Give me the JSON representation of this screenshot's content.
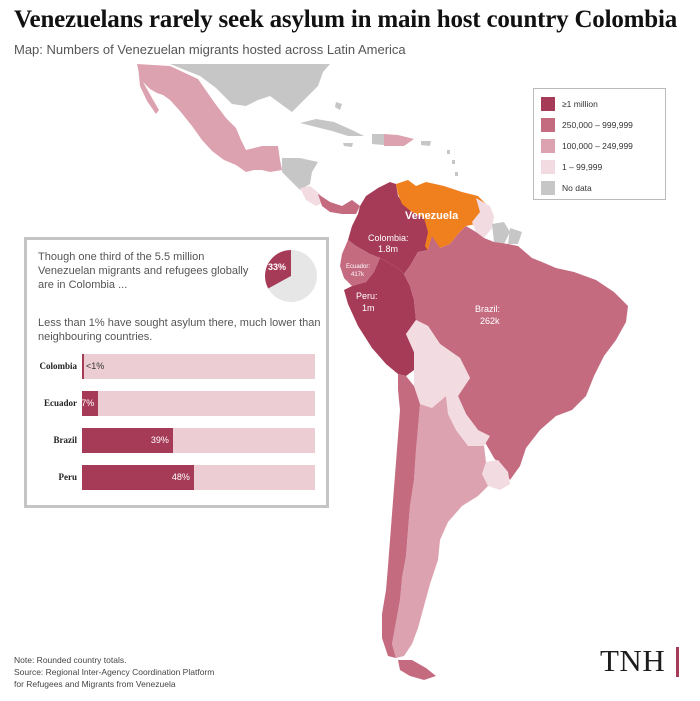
{
  "title": "Venezuelans rarely seek asylum in main host country Colombia",
  "subtitle": "Map: Numbers of Venezuelan migrants hosted across Latin America",
  "colors": {
    "tier1": "#a63b57",
    "tier2": "#c46b80",
    "tier3": "#dda2af",
    "tier4": "#f2dce1",
    "nodata": "#c6c6c6",
    "venezuela": "#f07f1e",
    "bar_track": "#ebcdd3"
  },
  "legend": {
    "items": [
      {
        "label": "≥1 million",
        "color": "#a63b57"
      },
      {
        "label": "250,000 – 999,999",
        "color": "#c46b80"
      },
      {
        "label": "100,000 – 249,999",
        "color": "#dda2af"
      },
      {
        "label": "1 – 99,999",
        "color": "#f2dce1"
      },
      {
        "label": "No data",
        "color": "#c6c6c6"
      }
    ]
  },
  "map_labels": {
    "venezuela": "Venezuela",
    "colombia_name": "Colombia:",
    "colombia_value": "1.8m",
    "ecuador_name": "Ecuador:",
    "ecuador_value": "417k",
    "peru_name": "Peru:",
    "peru_value": "1m",
    "brazil_name": "Brazil:",
    "brazil_value": "262k"
  },
  "inset": {
    "text1": "Though one third of the 5.5 million Venezuelan migrants and refugees globally are in Colombia ...",
    "text2": "Less than 1% have sought asylum there, much lower than neighbouring countries.",
    "pie_label": "33%",
    "pie_share": 0.33
  },
  "chart_data": {
    "type": "bar",
    "orientation": "horizontal",
    "categories": [
      "Colombia",
      "Ecuador",
      "Brazil",
      "Peru"
    ],
    "values": [
      0.5,
      7,
      39,
      48
    ],
    "value_labels": [
      "<1%",
      "7%",
      "39%",
      "48%"
    ],
    "xlim": [
      0,
      100
    ]
  },
  "note": {
    "line1": "Note: Rounded country totals.",
    "line2": "Source: Regional Inter-Agency Coordination Platform",
    "line3": "for Refugees and Migrants from Venezuela"
  },
  "logo": "TNH"
}
